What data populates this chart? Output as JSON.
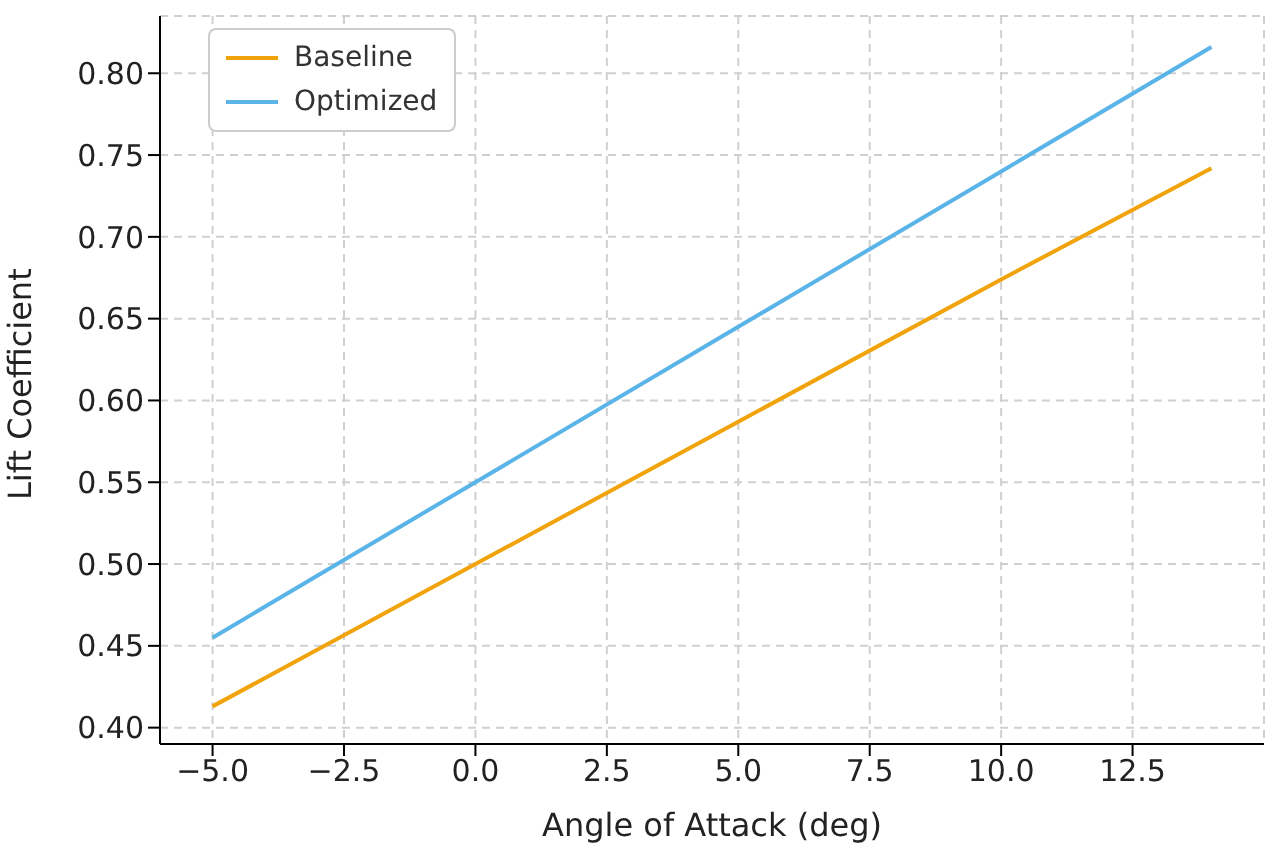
{
  "chart_data": {
    "type": "line",
    "xlabel": "Angle of Attack (deg)",
    "ylabel": "Lift Coefficient",
    "x": [
      -5,
      0,
      5,
      10,
      14
    ],
    "series": [
      {
        "name": "Baseline",
        "color": "#f0a30a",
        "values": [
          0.413,
          0.5,
          0.587,
          0.674,
          0.742
        ]
      },
      {
        "name": "Optimized",
        "color": "#5ab4e8",
        "values": [
          0.455,
          0.55,
          0.645,
          0.74,
          0.816
        ]
      }
    ],
    "xlim": [
      -6,
      15
    ],
    "ylim": [
      0.39,
      0.835
    ],
    "xticks": [
      {
        "value": -5,
        "label": "−5.0"
      },
      {
        "value": -2.5,
        "label": "−2.5"
      },
      {
        "value": 0,
        "label": "0.0"
      },
      {
        "value": 2.5,
        "label": "2.5"
      },
      {
        "value": 5,
        "label": "5.0"
      },
      {
        "value": 7.5,
        "label": "7.5"
      },
      {
        "value": 10,
        "label": "10.0"
      },
      {
        "value": 12.5,
        "label": "12.5"
      }
    ],
    "yticks": [
      {
        "value": 0.4,
        "label": "0.40"
      },
      {
        "value": 0.45,
        "label": "0.45"
      },
      {
        "value": 0.5,
        "label": "0.50"
      },
      {
        "value": 0.55,
        "label": "0.55"
      },
      {
        "value": 0.6,
        "label": "0.60"
      },
      {
        "value": 0.65,
        "label": "0.65"
      },
      {
        "value": 0.7,
        "label": "0.70"
      },
      {
        "value": 0.75,
        "label": "0.75"
      },
      {
        "value": 0.8,
        "label": "0.80"
      }
    ],
    "grid": true,
    "legend": "top left",
    "marker": "none",
    "line_style": "solid"
  }
}
